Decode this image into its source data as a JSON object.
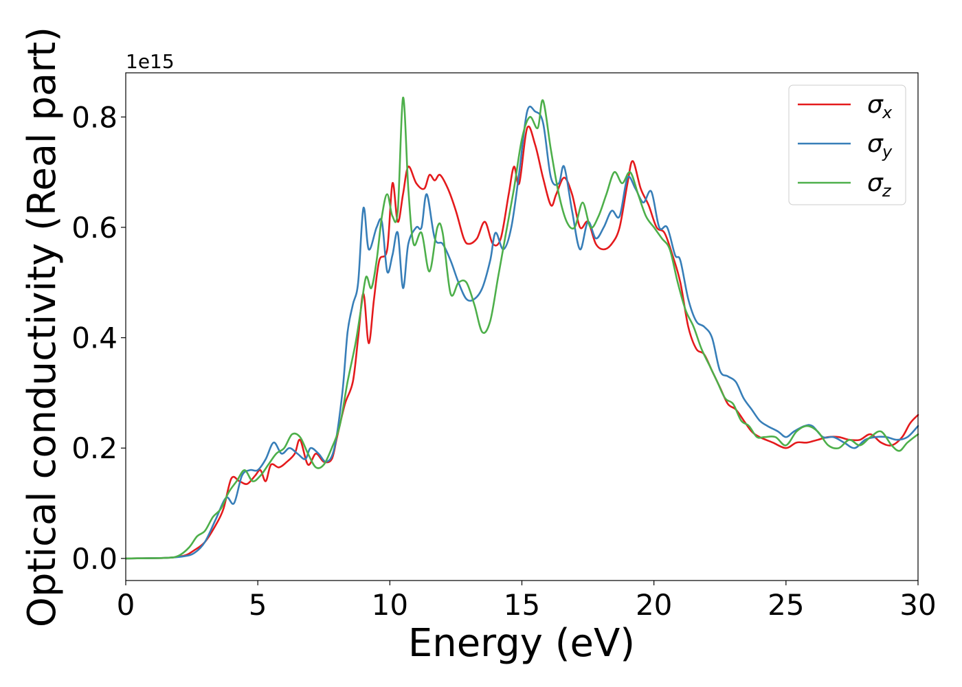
{
  "chart_data": {
    "type": "line",
    "title": "",
    "xlabel": "Energy (eV)",
    "ylabel": "Optical conductivity (Real part)",
    "y_offset_label": "1e15",
    "xlim": [
      0,
      30
    ],
    "ylim": [
      -0.04,
      0.88
    ],
    "x_ticks": [
      0,
      5,
      10,
      15,
      20,
      25,
      30
    ],
    "x_tick_labels": [
      "0",
      "5",
      "10",
      "15",
      "20",
      "25",
      "30"
    ],
    "y_ticks": [
      0.0,
      0.2,
      0.4,
      0.6,
      0.8
    ],
    "y_tick_labels": [
      "0.0",
      "0.2",
      "0.4",
      "0.6",
      "0.8"
    ],
    "grid": false,
    "legend_position": "top-right",
    "series": [
      {
        "name": "σ_x",
        "legend_symbol": "σ",
        "legend_subscript": "x",
        "color": "#e41a1c",
        "points": [
          [
            0,
            0
          ],
          [
            1.5,
            0.001
          ],
          [
            2.2,
            0.005
          ],
          [
            2.6,
            0.015
          ],
          [
            3.0,
            0.03
          ],
          [
            3.4,
            0.06
          ],
          [
            3.7,
            0.09
          ],
          [
            4.0,
            0.145
          ],
          [
            4.3,
            0.14
          ],
          [
            4.6,
            0.135
          ],
          [
            4.9,
            0.15
          ],
          [
            5.1,
            0.16
          ],
          [
            5.3,
            0.14
          ],
          [
            5.5,
            0.17
          ],
          [
            5.8,
            0.165
          ],
          [
            6.1,
            0.175
          ],
          [
            6.4,
            0.19
          ],
          [
            6.6,
            0.215
          ],
          [
            6.9,
            0.17
          ],
          [
            7.2,
            0.19
          ],
          [
            7.5,
            0.175
          ],
          [
            7.8,
            0.18
          ],
          [
            8.0,
            0.22
          ],
          [
            8.3,
            0.28
          ],
          [
            8.6,
            0.32
          ],
          [
            8.8,
            0.4
          ],
          [
            9.0,
            0.48
          ],
          [
            9.2,
            0.39
          ],
          [
            9.4,
            0.47
          ],
          [
            9.6,
            0.54
          ],
          [
            9.9,
            0.56
          ],
          [
            10.1,
            0.68
          ],
          [
            10.3,
            0.61
          ],
          [
            10.5,
            0.66
          ],
          [
            10.7,
            0.71
          ],
          [
            11.0,
            0.68
          ],
          [
            11.3,
            0.67
          ],
          [
            11.5,
            0.695
          ],
          [
            11.7,
            0.685
          ],
          [
            11.9,
            0.695
          ],
          [
            12.2,
            0.67
          ],
          [
            12.5,
            0.63
          ],
          [
            12.8,
            0.58
          ],
          [
            13.0,
            0.57
          ],
          [
            13.3,
            0.58
          ],
          [
            13.6,
            0.61
          ],
          [
            13.9,
            0.57
          ],
          [
            14.2,
            0.58
          ],
          [
            14.5,
            0.66
          ],
          [
            14.7,
            0.71
          ],
          [
            14.9,
            0.68
          ],
          [
            15.2,
            0.78
          ],
          [
            15.5,
            0.75
          ],
          [
            15.8,
            0.69
          ],
          [
            16.1,
            0.64
          ],
          [
            16.3,
            0.66
          ],
          [
            16.6,
            0.69
          ],
          [
            16.9,
            0.66
          ],
          [
            17.2,
            0.6
          ],
          [
            17.5,
            0.61
          ],
          [
            17.8,
            0.57
          ],
          [
            18.1,
            0.56
          ],
          [
            18.4,
            0.57
          ],
          [
            18.7,
            0.6
          ],
          [
            19.0,
            0.68
          ],
          [
            19.2,
            0.72
          ],
          [
            19.5,
            0.67
          ],
          [
            19.8,
            0.64
          ],
          [
            20.1,
            0.6
          ],
          [
            20.4,
            0.59
          ],
          [
            20.7,
            0.55
          ],
          [
            21.0,
            0.5
          ],
          [
            21.3,
            0.42
          ],
          [
            21.6,
            0.38
          ],
          [
            21.9,
            0.37
          ],
          [
            22.2,
            0.34
          ],
          [
            22.5,
            0.31
          ],
          [
            22.8,
            0.28
          ],
          [
            23.1,
            0.27
          ],
          [
            23.4,
            0.25
          ],
          [
            23.7,
            0.23
          ],
          [
            24.0,
            0.22
          ],
          [
            24.5,
            0.21
          ],
          [
            25.0,
            0.2
          ],
          [
            25.4,
            0.21
          ],
          [
            25.8,
            0.21
          ],
          [
            26.2,
            0.215
          ],
          [
            26.6,
            0.22
          ],
          [
            27.0,
            0.22
          ],
          [
            27.4,
            0.215
          ],
          [
            27.8,
            0.215
          ],
          [
            28.2,
            0.225
          ],
          [
            28.6,
            0.21
          ],
          [
            29.0,
            0.205
          ],
          [
            29.4,
            0.22
          ],
          [
            29.7,
            0.245
          ],
          [
            30.0,
            0.26
          ]
        ]
      },
      {
        "name": "σ_y",
        "legend_symbol": "σ",
        "legend_subscript": "y",
        "color": "#377eb8",
        "points": [
          [
            0,
            0
          ],
          [
            1.5,
            0.001
          ],
          [
            2.2,
            0.004
          ],
          [
            2.6,
            0.01
          ],
          [
            3.0,
            0.03
          ],
          [
            3.4,
            0.07
          ],
          [
            3.8,
            0.11
          ],
          [
            4.1,
            0.1
          ],
          [
            4.4,
            0.15
          ],
          [
            4.7,
            0.16
          ],
          [
            5.0,
            0.16
          ],
          [
            5.3,
            0.18
          ],
          [
            5.6,
            0.21
          ],
          [
            5.9,
            0.19
          ],
          [
            6.2,
            0.2
          ],
          [
            6.5,
            0.19
          ],
          [
            6.8,
            0.18
          ],
          [
            7.0,
            0.2
          ],
          [
            7.3,
            0.19
          ],
          [
            7.6,
            0.175
          ],
          [
            7.9,
            0.2
          ],
          [
            8.2,
            0.3
          ],
          [
            8.4,
            0.41
          ],
          [
            8.6,
            0.46
          ],
          [
            8.8,
            0.5
          ],
          [
            9.0,
            0.635
          ],
          [
            9.2,
            0.56
          ],
          [
            9.5,
            0.6
          ],
          [
            9.7,
            0.61
          ],
          [
            9.9,
            0.52
          ],
          [
            10.1,
            0.55
          ],
          [
            10.3,
            0.59
          ],
          [
            10.5,
            0.49
          ],
          [
            10.7,
            0.57
          ],
          [
            11.0,
            0.6
          ],
          [
            11.2,
            0.6
          ],
          [
            11.4,
            0.66
          ],
          [
            11.7,
            0.58
          ],
          [
            12.0,
            0.57
          ],
          [
            12.3,
            0.54
          ],
          [
            12.6,
            0.5
          ],
          [
            12.9,
            0.47
          ],
          [
            13.2,
            0.47
          ],
          [
            13.5,
            0.49
          ],
          [
            13.8,
            0.54
          ],
          [
            14.0,
            0.59
          ],
          [
            14.3,
            0.56
          ],
          [
            14.6,
            0.6
          ],
          [
            14.9,
            0.7
          ],
          [
            15.2,
            0.81
          ],
          [
            15.5,
            0.81
          ],
          [
            15.8,
            0.79
          ],
          [
            16.1,
            0.69
          ],
          [
            16.4,
            0.68
          ],
          [
            16.6,
            0.71
          ],
          [
            16.9,
            0.63
          ],
          [
            17.2,
            0.56
          ],
          [
            17.5,
            0.61
          ],
          [
            17.8,
            0.58
          ],
          [
            18.1,
            0.6
          ],
          [
            18.4,
            0.63
          ],
          [
            18.7,
            0.62
          ],
          [
            19.0,
            0.69
          ],
          [
            19.3,
            0.67
          ],
          [
            19.6,
            0.645
          ],
          [
            19.9,
            0.665
          ],
          [
            20.2,
            0.6
          ],
          [
            20.5,
            0.6
          ],
          [
            20.8,
            0.55
          ],
          [
            21.0,
            0.54
          ],
          [
            21.3,
            0.47
          ],
          [
            21.6,
            0.43
          ],
          [
            21.9,
            0.42
          ],
          [
            22.2,
            0.4
          ],
          [
            22.5,
            0.34
          ],
          [
            22.8,
            0.33
          ],
          [
            23.1,
            0.32
          ],
          [
            23.4,
            0.29
          ],
          [
            23.7,
            0.27
          ],
          [
            24.0,
            0.25
          ],
          [
            24.3,
            0.24
          ],
          [
            24.7,
            0.23
          ],
          [
            25.0,
            0.22
          ],
          [
            25.3,
            0.23
          ],
          [
            25.7,
            0.24
          ],
          [
            26.0,
            0.24
          ],
          [
            26.4,
            0.22
          ],
          [
            26.8,
            0.22
          ],
          [
            27.2,
            0.21
          ],
          [
            27.6,
            0.2
          ],
          [
            28.0,
            0.215
          ],
          [
            28.4,
            0.22
          ],
          [
            28.8,
            0.22
          ],
          [
            29.2,
            0.215
          ],
          [
            29.6,
            0.22
          ],
          [
            30.0,
            0.24
          ]
        ]
      },
      {
        "name": "σ_z",
        "legend_symbol": "σ",
        "legend_subscript": "z",
        "color": "#4daf4a",
        "points": [
          [
            0,
            0
          ],
          [
            1.5,
            0.001
          ],
          [
            2.0,
            0.005
          ],
          [
            2.4,
            0.02
          ],
          [
            2.7,
            0.04
          ],
          [
            3.0,
            0.05
          ],
          [
            3.3,
            0.075
          ],
          [
            3.6,
            0.09
          ],
          [
            3.9,
            0.12
          ],
          [
            4.2,
            0.14
          ],
          [
            4.5,
            0.16
          ],
          [
            4.8,
            0.14
          ],
          [
            5.1,
            0.15
          ],
          [
            5.4,
            0.17
          ],
          [
            5.7,
            0.19
          ],
          [
            6.0,
            0.2
          ],
          [
            6.3,
            0.225
          ],
          [
            6.6,
            0.22
          ],
          [
            6.9,
            0.19
          ],
          [
            7.2,
            0.165
          ],
          [
            7.5,
            0.17
          ],
          [
            7.8,
            0.2
          ],
          [
            8.1,
            0.24
          ],
          [
            8.4,
            0.32
          ],
          [
            8.7,
            0.39
          ],
          [
            8.9,
            0.45
          ],
          [
            9.1,
            0.51
          ],
          [
            9.3,
            0.49
          ],
          [
            9.5,
            0.54
          ],
          [
            9.7,
            0.62
          ],
          [
            9.9,
            0.66
          ],
          [
            10.1,
            0.62
          ],
          [
            10.3,
            0.63
          ],
          [
            10.5,
            0.835
          ],
          [
            10.7,
            0.67
          ],
          [
            10.9,
            0.57
          ],
          [
            11.2,
            0.59
          ],
          [
            11.5,
            0.52
          ],
          [
            11.8,
            0.6
          ],
          [
            12.0,
            0.59
          ],
          [
            12.3,
            0.48
          ],
          [
            12.6,
            0.5
          ],
          [
            12.9,
            0.5
          ],
          [
            13.2,
            0.46
          ],
          [
            13.5,
            0.41
          ],
          [
            13.8,
            0.43
          ],
          [
            14.1,
            0.51
          ],
          [
            14.4,
            0.59
          ],
          [
            14.7,
            0.67
          ],
          [
            15.0,
            0.76
          ],
          [
            15.3,
            0.8
          ],
          [
            15.6,
            0.78
          ],
          [
            15.8,
            0.83
          ],
          [
            16.1,
            0.74
          ],
          [
            16.4,
            0.66
          ],
          [
            16.7,
            0.61
          ],
          [
            17.0,
            0.6
          ],
          [
            17.3,
            0.645
          ],
          [
            17.6,
            0.6
          ],
          [
            17.9,
            0.62
          ],
          [
            18.2,
            0.66
          ],
          [
            18.5,
            0.7
          ],
          [
            18.8,
            0.68
          ],
          [
            19.1,
            0.7
          ],
          [
            19.4,
            0.66
          ],
          [
            19.7,
            0.62
          ],
          [
            20.0,
            0.6
          ],
          [
            20.3,
            0.58
          ],
          [
            20.6,
            0.56
          ],
          [
            20.9,
            0.5
          ],
          [
            21.2,
            0.45
          ],
          [
            21.5,
            0.42
          ],
          [
            21.8,
            0.38
          ],
          [
            22.1,
            0.35
          ],
          [
            22.4,
            0.32
          ],
          [
            22.7,
            0.29
          ],
          [
            23.0,
            0.28
          ],
          [
            23.3,
            0.25
          ],
          [
            23.6,
            0.24
          ],
          [
            23.9,
            0.22
          ],
          [
            24.2,
            0.22
          ],
          [
            24.6,
            0.22
          ],
          [
            25.0,
            0.205
          ],
          [
            25.4,
            0.23
          ],
          [
            25.8,
            0.24
          ],
          [
            26.2,
            0.23
          ],
          [
            26.6,
            0.205
          ],
          [
            27.0,
            0.2
          ],
          [
            27.4,
            0.215
          ],
          [
            27.8,
            0.205
          ],
          [
            28.2,
            0.22
          ],
          [
            28.6,
            0.23
          ],
          [
            29.0,
            0.205
          ],
          [
            29.3,
            0.195
          ],
          [
            29.6,
            0.21
          ],
          [
            30.0,
            0.225
          ]
        ]
      }
    ]
  }
}
